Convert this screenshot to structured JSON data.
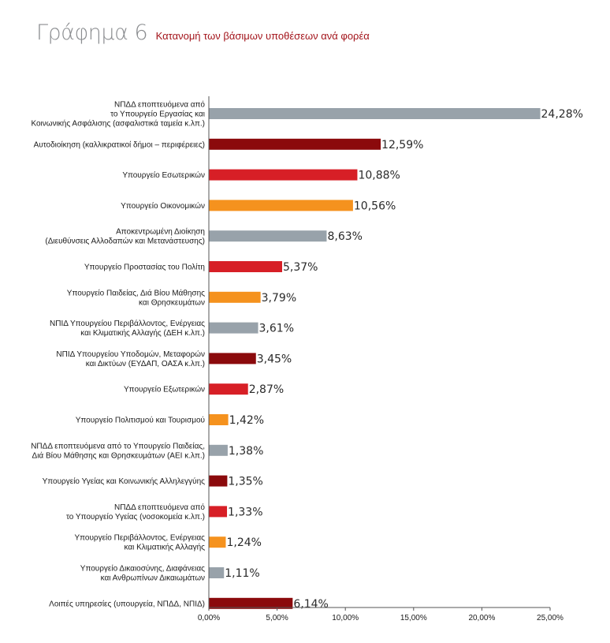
{
  "title": {
    "main": "Γράφημα 6",
    "subtitle": "Κατανομή των βάσιμων υποθέσεων ανά φορέα"
  },
  "colors": {
    "grey": "#98a2aa",
    "darkred": "#8b0a0c",
    "red": "#d71f26",
    "orange": "#f5921e",
    "axis": "#555555"
  },
  "chart_data": {
    "type": "bar",
    "orientation": "horizontal",
    "xlim": [
      0,
      25
    ],
    "xticks": [
      "0,00%",
      "5,00%",
      "10,00%",
      "15,00%",
      "20,00%",
      "25,00%"
    ],
    "grid": false,
    "legend": "none",
    "categories": [
      [
        "ΝΠΔΔ εποπτευόμενα από",
        "το Υπουργείο Εργασίας και",
        "Κοινωνικής Ασφάλισης (ασφαλιστικά ταμεία κ.λπ.)"
      ],
      [
        "Αυτοδιοίκηση (καλλικρατικοί δήμοι – περιφέρειες)"
      ],
      [
        "Υπουργείο Εσωτερικών"
      ],
      [
        "Υπουργείο Οικονομικών"
      ],
      [
        "Αποκεντρωμένη Διοίκηση",
        "(Διευθύνσεις Αλλοδαπών και Μετανάστευσης)"
      ],
      [
        "Υπουργείο Προστασίας του Πολίτη"
      ],
      [
        "Υπουργείο Παιδείας, Διά Βίου Μάθησης",
        "και Θρησκευμάτων"
      ],
      [
        "ΝΠΙΔ Υπουργείου Περιβάλλοντος, Ενέργειας",
        "και Κλιματικής Αλλαγής (ΔΕΗ κ.λπ.)"
      ],
      [
        "ΝΠΙΔ Υπουργείου Υποδομών, Μεταφορών",
        "και Δικτύων (ΕΥΔΑΠ, ΟΑΣΑ κ.λπ.)"
      ],
      [
        "Υπουργείο Εξωτερικών"
      ],
      [
        "Υπουργείο Πολιτισμού και Τουρισμού"
      ],
      [
        "ΝΠΔΔ εποπτευόμενα από το Υπουργείο Παιδείας,",
        "Διά Βίου Μάθησης και Θρησκευμάτων (ΑΕΙ κ.λπ.)"
      ],
      [
        "Υπουργείο Υγείας και Κοινωνικής Αλληλεγγύης"
      ],
      [
        "ΝΠΔΔ εποπτευόμενα από",
        "το Υπουργείο Υγείας (νοσοκομεία κ.λπ.)"
      ],
      [
        "Υπουργείο Περιβάλλοντος, Ενέργειας",
        "και Κλιματικής Αλλαγής"
      ],
      [
        "Υπουργείο Δικαιοσύνης, Διαφάνειας",
        "και Ανθρωπίνων Δικαιωμάτων"
      ],
      [
        "Λοιπές υπηρεσίες (υπουργεία, ΝΠΔΔ, ΝΠΙΔ)"
      ]
    ],
    "values": [
      24.28,
      12.59,
      10.88,
      10.56,
      8.63,
      5.37,
      3.79,
      3.61,
      3.45,
      2.87,
      1.42,
      1.38,
      1.35,
      1.33,
      1.24,
      1.11,
      6.14
    ],
    "value_labels": [
      "24,28%",
      "12,59%",
      "10,88%",
      "10,56%",
      "8,63%",
      "5,37%",
      "3,79%",
      "3,61%",
      "3,45%",
      "2,87%",
      "1,42%",
      "1,38%",
      "1,35%",
      "1,33%",
      "1,24%",
      "1,11%",
      "6,14%"
    ],
    "bar_colors": [
      "grey",
      "darkred",
      "red",
      "orange",
      "grey",
      "red",
      "orange",
      "grey",
      "darkred",
      "red",
      "orange",
      "grey",
      "darkred",
      "red",
      "orange",
      "grey",
      "darkred"
    ]
  }
}
